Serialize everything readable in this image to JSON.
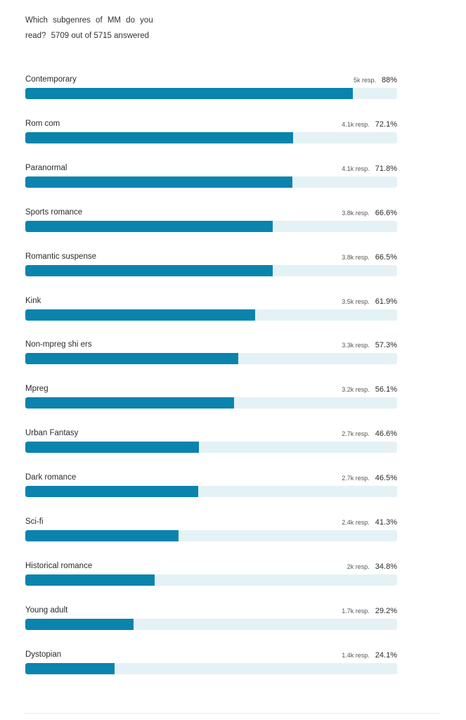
{
  "question": {
    "text": "Which subgenres of MM do you read?",
    "answered": "5709 out of 5715 answered"
  },
  "chart_data": {
    "type": "bar",
    "orientation": "horizontal",
    "xlim": [
      0,
      100
    ],
    "grid": false,
    "colors": {
      "fill": "#0a84ad",
      "track": "#e4f2f6"
    },
    "rows": [
      {
        "label": "Contemporary",
        "responses": "5k resp.",
        "percent_label": "88%",
        "value": 88.0
      },
      {
        "label": "Rom com",
        "responses": "4.1k resp.",
        "percent_label": "72.1%",
        "value": 72.1
      },
      {
        "label": "Paranormal",
        "responses": "4.1k resp.",
        "percent_label": "71.8%",
        "value": 71.8
      },
      {
        "label": "Sports romance",
        "responses": "3.8k resp.",
        "percent_label": "66.6%",
        "value": 66.6
      },
      {
        "label": "Romantic suspense",
        "responses": "3.8k resp.",
        "percent_label": "66.5%",
        "value": 66.5
      },
      {
        "label": "Kink",
        "responses": "3.5k resp.",
        "percent_label": "61.9%",
        "value": 61.9
      },
      {
        "label": "Non-mpreg shi ers",
        "responses": "3.3k resp.",
        "percent_label": "57.3%",
        "value": 57.3
      },
      {
        "label": "Mpreg",
        "responses": "3.2k resp.",
        "percent_label": "56.1%",
        "value": 56.1
      },
      {
        "label": "Urban Fantasy",
        "responses": "2.7k resp.",
        "percent_label": "46.6%",
        "value": 46.6
      },
      {
        "label": "Dark romance",
        "responses": "2.7k resp.",
        "percent_label": "46.5%",
        "value": 46.5
      },
      {
        "label": "Sci-fi",
        "responses": "2.4k resp.",
        "percent_label": "41.3%",
        "value": 41.3
      },
      {
        "label": "Historical romance",
        "responses": "2k resp.",
        "percent_label": "34.8%",
        "value": 34.8
      },
      {
        "label": "Young adult",
        "responses": "1.7k resp.",
        "percent_label": "29.2%",
        "value": 29.2
      },
      {
        "label": "Dystopian",
        "responses": "1.4k resp.",
        "percent_label": "24.1%",
        "value": 24.1
      }
    ]
  }
}
